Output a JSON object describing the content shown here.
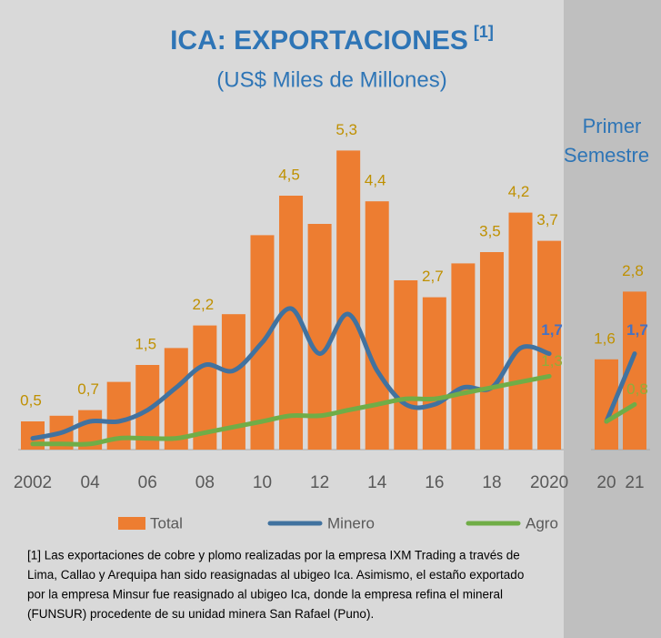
{
  "chart_data": {
    "type": "bar",
    "title": "ICA: EXPORTACIONES",
    "title_note": "[1]",
    "subtitle": "(US$ Miles de Millones)",
    "panel_label": [
      "Primer",
      "Semestre"
    ],
    "categories": [
      "2002",
      null,
      "04",
      null,
      "06",
      null,
      "08",
      null,
      "10",
      null,
      "12",
      null,
      "14",
      null,
      "16",
      null,
      "18",
      null,
      "2020",
      "20",
      "21"
    ],
    "series": [
      {
        "name": "Total",
        "type": "bar",
        "color": "#ed7d31",
        "label_color": "#bf9000",
        "values": [
          0.5,
          0.6,
          0.7,
          1.2,
          1.5,
          1.8,
          2.2,
          2.4,
          3.8,
          4.5,
          4.0,
          5.3,
          4.4,
          3.0,
          2.7,
          3.3,
          3.5,
          4.2,
          3.7,
          1.6,
          2.8
        ],
        "value_labels": [
          "0,5",
          null,
          "0,7",
          null,
          "1,5",
          null,
          "2,2",
          null,
          null,
          "4,5",
          null,
          "5,3",
          "4,4",
          null,
          "2,7",
          null,
          "3,5",
          "4,2",
          "3,7",
          "1,6",
          "2,8"
        ]
      },
      {
        "name": "Minero",
        "type": "line",
        "color": "#41729f",
        "label_color": "#4472c4",
        "values": [
          0.2,
          0.3,
          0.5,
          0.5,
          0.7,
          1.1,
          1.5,
          1.4,
          1.9,
          2.5,
          1.7,
          2.4,
          1.4,
          0.8,
          0.8,
          1.1,
          1.1,
          1.8,
          1.7,
          0.5,
          1.7
        ],
        "value_labels": [
          null,
          null,
          null,
          null,
          null,
          null,
          null,
          null,
          null,
          null,
          null,
          null,
          null,
          null,
          null,
          null,
          null,
          null,
          "1,7",
          null,
          "1,7"
        ]
      },
      {
        "name": "Agro",
        "type": "line",
        "color": "#70ad47",
        "label_color": "#8fae3a",
        "values": [
          0.1,
          0.1,
          0.1,
          0.2,
          0.2,
          0.2,
          0.3,
          0.4,
          0.5,
          0.6,
          0.6,
          0.7,
          0.8,
          0.9,
          0.9,
          1.0,
          1.1,
          1.2,
          1.3,
          0.5,
          0.8
        ],
        "value_labels": [
          null,
          null,
          null,
          null,
          null,
          null,
          null,
          null,
          null,
          null,
          null,
          null,
          null,
          null,
          null,
          null,
          null,
          null,
          "1,3",
          null,
          "0,8"
        ]
      }
    ],
    "footnote": [
      "[1] Las exportaciones de cobre y plomo realizadas por la empresa IXM Trading a través de",
      "Lima, Callao y Arequipa han sido reasignadas al ubigeo Ica. Asimismo, el estaño exportado",
      "por la empresa Minsur fue reasignado al ubigeo Ica, donde la empresa refina el mineral",
      "(FUNSUR) procedente de su unidad minera San Rafael (Puno)."
    ]
  }
}
